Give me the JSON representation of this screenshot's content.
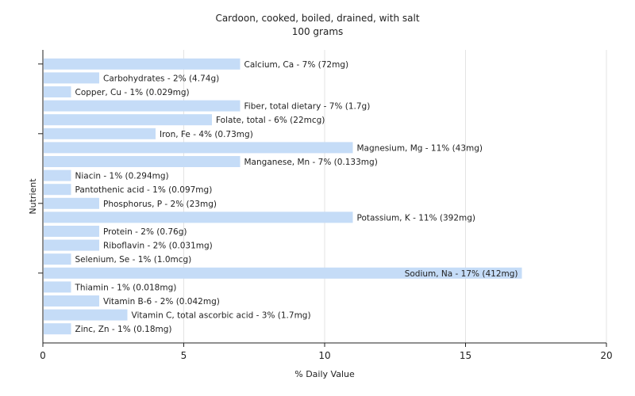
{
  "chart_data": {
    "type": "bar",
    "orientation": "horizontal",
    "title": "Cardoon, cooked, boiled, drained, with salt",
    "subtitle": "100 grams",
    "xlabel": "% Daily Value",
    "ylabel": "Nutrient",
    "xlim": [
      0,
      20
    ],
    "xticks": [
      0,
      5,
      10,
      15,
      20
    ],
    "grid": true,
    "legend": "none",
    "bar_color": "#c5dcf7",
    "grid_color": "#e3e3e3",
    "categories": [
      "Calcium, Ca",
      "Carbohydrates",
      "Copper, Cu",
      "Fiber, total dietary",
      "Folate, total",
      "Iron, Fe",
      "Magnesium, Mg",
      "Manganese, Mn",
      "Niacin",
      "Pantothenic acid",
      "Phosphorus, P",
      "Potassium, K",
      "Protein",
      "Riboflavin",
      "Selenium, Se",
      "Sodium, Na",
      "Thiamin",
      "Vitamin B-6",
      "Vitamin C, total ascorbic acid",
      "Zinc, Zn"
    ],
    "values": [
      7,
      2,
      1,
      7,
      6,
      4,
      11,
      7,
      1,
      1,
      2,
      11,
      2,
      2,
      1,
      17,
      1,
      2,
      3,
      1
    ],
    "labels": [
      "Calcium, Ca - 7% (72mg)",
      "Carbohydrates - 2% (4.74g)",
      "Copper, Cu - 1% (0.029mg)",
      "Fiber, total dietary - 7% (1.7g)",
      "Folate, total - 6% (22mcg)",
      "Iron, Fe - 4% (0.73mg)",
      "Magnesium, Mg - 11% (43mg)",
      "Manganese, Mn - 7% (0.133mg)",
      "Niacin - 1% (0.294mg)",
      "Pantothenic acid - 1% (0.097mg)",
      "Phosphorus, P - 2% (23mg)",
      "Potassium, K - 11% (392mg)",
      "Protein - 2% (0.76g)",
      "Riboflavin - 2% (0.031mg)",
      "Selenium, Se - 1% (1.0mcg)",
      "Sodium, Na - 17% (412mg)",
      "Thiamin - 1% (0.018mg)",
      "Vitamin B-6 - 2% (0.042mg)",
      "Vitamin C, total ascorbic acid - 3% (1.7mg)",
      "Zinc, Zn - 1% (0.18mg)"
    ]
  }
}
